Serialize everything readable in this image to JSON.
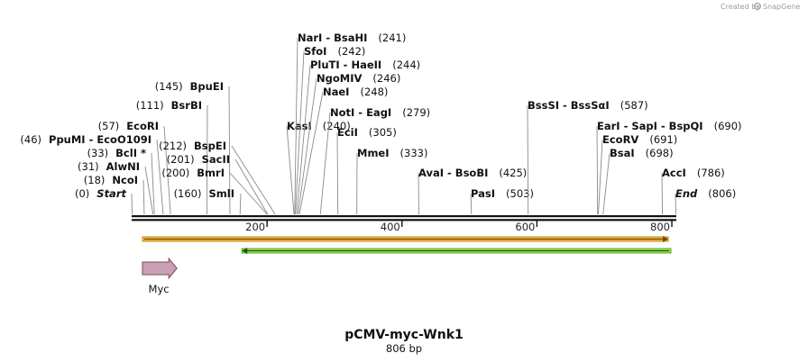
{
  "header": {
    "credit": "Created by",
    "brand": "SnapGene"
  },
  "plasmid": {
    "name": "pCMV-myc-Wnk1",
    "length_label": "806 bp",
    "length_bp": 806
  },
  "ruler": {
    "ticks": [
      200,
      400,
      600,
      800
    ]
  },
  "sites": [
    {
      "pos": 0,
      "label": "(0)",
      "name": "Start",
      "style": "italic"
    },
    {
      "pos": 18,
      "label": "(18)",
      "name": "NcoI"
    },
    {
      "pos": 31,
      "label": "(31)",
      "name": "AlwNI"
    },
    {
      "pos": 33,
      "label": "(33)",
      "name": "BclI *"
    },
    {
      "pos": 46,
      "label": "(46)",
      "name": "PpuMI  - EcoO109I"
    },
    {
      "pos": 57,
      "label": "(57)",
      "name": "EcoRI"
    },
    {
      "pos": 111,
      "label": "(111)",
      "name": "BsrBI"
    },
    {
      "pos": 145,
      "label": "(145)",
      "name": "BpuEI"
    },
    {
      "pos": 160,
      "label": "(160)",
      "name": "SmlI"
    },
    {
      "pos": 200,
      "label": "(200)",
      "name": "BmrI"
    },
    {
      "pos": 201,
      "label": "(201)",
      "name": "SacII"
    },
    {
      "pos": 212,
      "label": "(212)",
      "name": "BspEI"
    },
    {
      "pos": 240,
      "label": "(240)",
      "name": "KasI"
    },
    {
      "pos": 241,
      "label": "(241)",
      "name": "NarI  - BsaHI"
    },
    {
      "pos": 242,
      "label": "(242)",
      "name": "SfoI"
    },
    {
      "pos": 244,
      "label": "(244)",
      "name": "PluTI  - HaeII"
    },
    {
      "pos": 246,
      "label": "(246)",
      "name": "NgoMIV"
    },
    {
      "pos": 248,
      "label": "(248)",
      "name": "NaeI"
    },
    {
      "pos": 279,
      "label": "(279)",
      "name": "NotI  - EagI"
    },
    {
      "pos": 305,
      "label": "(305)",
      "name": "EciI"
    },
    {
      "pos": 333,
      "label": "(333)",
      "name": "MmeI"
    },
    {
      "pos": 425,
      "label": "(425)",
      "name": "AvaI  - BsoBI"
    },
    {
      "pos": 503,
      "label": "(503)",
      "name": "PasI"
    },
    {
      "pos": 587,
      "label": "(587)",
      "name": "BssSI  - BssSαI"
    },
    {
      "pos": 690,
      "label": "(690)",
      "name": "EarI  - SapI  - BspQI"
    },
    {
      "pos": 691,
      "label": "(691)",
      "name": "EcoRV"
    },
    {
      "pos": 698,
      "label": "(698)",
      "name": "BsaI"
    },
    {
      "pos": 786,
      "label": "(786)",
      "name": "AccI"
    },
    {
      "pos": 806,
      "label": "(806)",
      "name": "End",
      "style": "italic"
    }
  ],
  "features": [
    {
      "name": "orange-feature",
      "start": 18,
      "end": 800,
      "direction": "forward",
      "color": "#f2b544"
    },
    {
      "name": "green-feature",
      "start": 160,
      "end": 800,
      "direction": "reverse",
      "color": "#9be05a"
    },
    {
      "name": "Myc",
      "label": "Myc",
      "start": 18,
      "end": 49,
      "direction": "forward",
      "color": "#c9a0b4"
    }
  ]
}
